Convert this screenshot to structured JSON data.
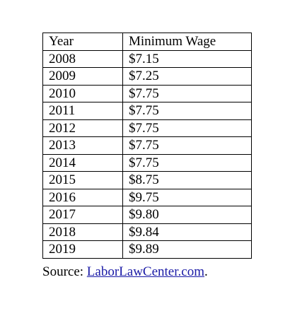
{
  "table": {
    "headers": [
      "Year",
      "Minimum Wage"
    ],
    "rows": [
      [
        "2008",
        "$7.15"
      ],
      [
        "2009",
        "$7.25"
      ],
      [
        "2010",
        "$7.75"
      ],
      [
        "2011",
        "$7.75"
      ],
      [
        "2012",
        "$7.75"
      ],
      [
        "2013",
        "$7.75"
      ],
      [
        "2014",
        "$7.75"
      ],
      [
        "2015",
        "$8.75"
      ],
      [
        "2016",
        "$9.75"
      ],
      [
        "2017",
        "$9.80"
      ],
      [
        "2018",
        "$9.84"
      ],
      [
        "2019",
        "$9.89"
      ]
    ]
  },
  "source": {
    "prefix": "Source: ",
    "link_text": "LaborLawCenter.com",
    "suffix": "."
  },
  "colors": {
    "text": "#000000",
    "link": "#1a1aa6",
    "border": "#000000",
    "background": "#ffffff"
  }
}
